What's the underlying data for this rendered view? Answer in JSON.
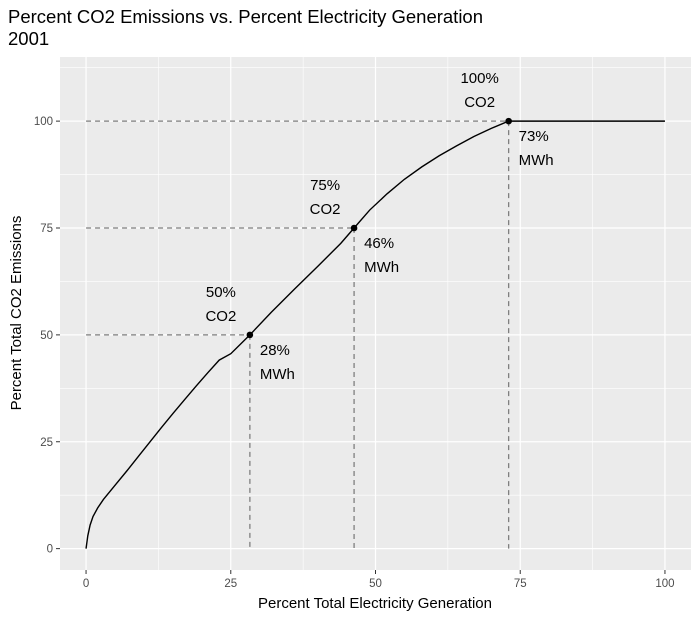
{
  "chart_data": {
    "type": "line",
    "title": "Percent CO2 Emissions vs. Percent Electricity Generation",
    "subtitle": "2001",
    "xlabel": "Percent Total Electricity Generation",
    "ylabel": "Percent Total CO2 Emissions",
    "xlim": [
      -4.5,
      104.5
    ],
    "ylim": [
      -5,
      115
    ],
    "x_ticks": [
      0,
      25,
      50,
      75,
      100
    ],
    "y_ticks": [
      0,
      25,
      50,
      75,
      100
    ],
    "x_tick_labels": [
      "0",
      "25",
      "50",
      "75",
      "100"
    ],
    "y_tick_labels": [
      "0",
      "25",
      "50",
      "75",
      "100"
    ],
    "grid": true,
    "series": [
      {
        "x": [
          0,
          0.3,
          0.7,
          1.2,
          2,
          3,
          5,
          7,
          9,
          11,
          13,
          15,
          17,
          19,
          21,
          23,
          25,
          28.3,
          32,
          36,
          40,
          44,
          46.3,
          49,
          52,
          55,
          58,
          61,
          64,
          67,
          70,
          73,
          80,
          90,
          100
        ],
        "y": [
          0,
          3,
          5.5,
          7.5,
          9.5,
          11.5,
          14.8,
          18.1,
          21.5,
          24.9,
          28.3,
          31.6,
          34.8,
          38,
          41.1,
          44.1,
          45.6,
          50,
          55.3,
          60.7,
          66,
          71.4,
          75,
          79.2,
          83,
          86.4,
          89.3,
          91.9,
          94.2,
          96.4,
          98.3,
          100,
          100,
          100,
          100
        ]
      }
    ],
    "highlights": [
      {
        "x": 28.3,
        "y": 50,
        "co2_label": [
          "50%",
          "CO2"
        ],
        "mwh_label": [
          "28%",
          "MWh"
        ]
      },
      {
        "x": 46.3,
        "y": 75,
        "co2_label": [
          "75%",
          "CO2"
        ],
        "mwh_label": [
          "46%",
          "MWh"
        ]
      },
      {
        "x": 73.0,
        "y": 100,
        "co2_label": [
          "100%",
          "CO2"
        ],
        "mwh_label": [
          "73%",
          "MWh"
        ]
      }
    ],
    "colors": {
      "panel": "#ebebeb",
      "grid": "#ffffff",
      "line": "#000000",
      "guide": "#7f7f7f",
      "tick_text": "#4d4d4d"
    }
  }
}
